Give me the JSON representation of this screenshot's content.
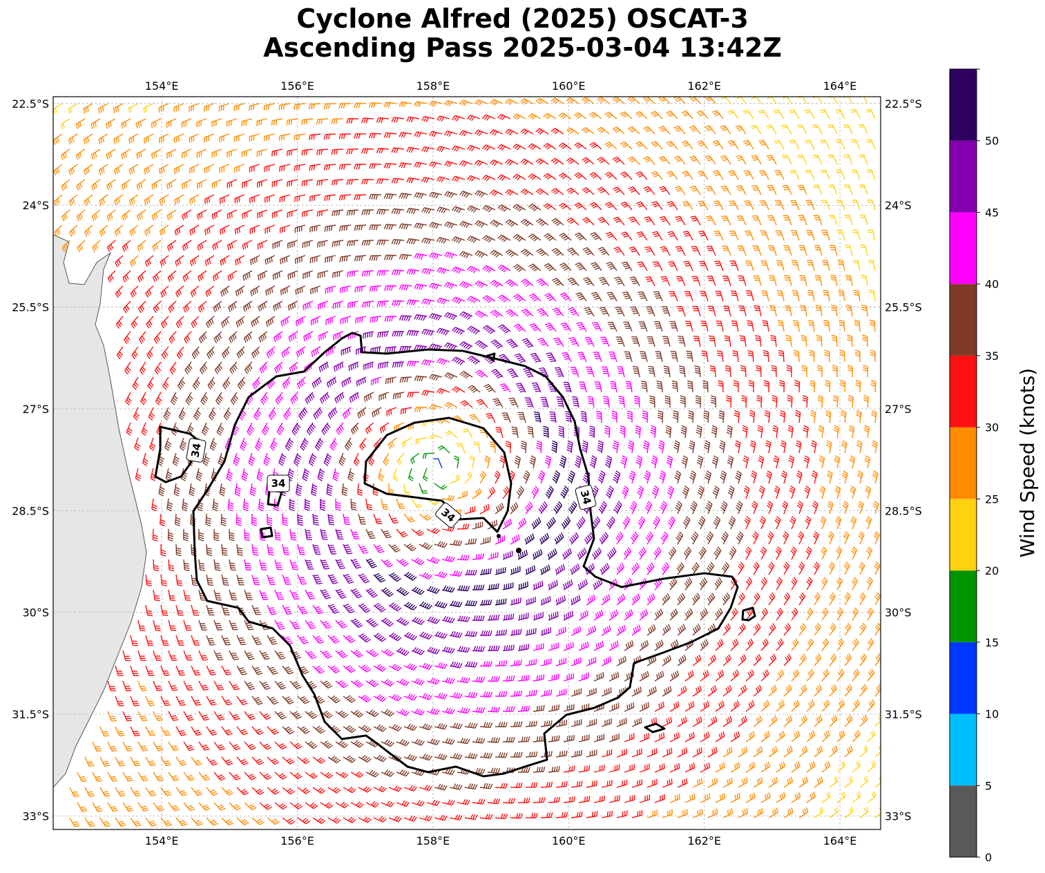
{
  "title": {
    "line1": "Cyclone Alfred (2025) OSCAT-3",
    "line2": "Ascending Pass 2025-03-04 13:42Z"
  },
  "map": {
    "lon_range": [
      152.4,
      164.6
    ],
    "lat_range": [
      -33.2,
      -22.4
    ],
    "lon_ticks": [
      {
        "value": 154,
        "label": "154°E"
      },
      {
        "value": 156,
        "label": "156°E"
      },
      {
        "value": 158,
        "label": "158°E"
      },
      {
        "value": 160,
        "label": "160°E"
      },
      {
        "value": 162,
        "label": "162°E"
      },
      {
        "value": 164,
        "label": "164°E"
      }
    ],
    "lat_ticks": [
      {
        "value": -22.5,
        "label": "22.5°S"
      },
      {
        "value": -24,
        "label": "24°S"
      },
      {
        "value": -25.5,
        "label": "25.5°S"
      },
      {
        "value": -27,
        "label": "27°S"
      },
      {
        "value": -28.5,
        "label": "28.5°S"
      },
      {
        "value": -30,
        "label": "30°S"
      },
      {
        "value": -31.5,
        "label": "31.5°S"
      },
      {
        "value": -33,
        "label": "33°S"
      }
    ],
    "gridlines": true,
    "coastline_color": "#555555",
    "land_shading": "#e6e6e6",
    "storm_center": {
      "lon": 158.1,
      "lat": -27.9
    }
  },
  "contour": {
    "level_label": "34",
    "color": "#000000"
  },
  "colorbar": {
    "label": "Wind Speed (knots)",
    "bins": [
      {
        "min": 0,
        "max": 5,
        "color": "#595959"
      },
      {
        "min": 5,
        "max": 10,
        "color": "#00bfff"
      },
      {
        "min": 10,
        "max": 15,
        "color": "#0037ff"
      },
      {
        "min": 15,
        "max": 20,
        "color": "#009400"
      },
      {
        "min": 20,
        "max": 25,
        "color": "#ffd20f"
      },
      {
        "min": 25,
        "max": 30,
        "color": "#ff8c00"
      },
      {
        "min": 30,
        "max": 35,
        "color": "#ff1010"
      },
      {
        "min": 35,
        "max": 40,
        "color": "#7f3b28"
      },
      {
        "min": 40,
        "max": 45,
        "color": "#ff00ff"
      },
      {
        "min": 45,
        "max": 50,
        "color": "#8400b0"
      },
      {
        "min": 50,
        "max": 55,
        "color": "#2e0060"
      }
    ],
    "ticks": [
      {
        "value": 0,
        "label": "0"
      },
      {
        "value": 5,
        "label": "5"
      },
      {
        "value": 10,
        "label": "10"
      },
      {
        "value": 15,
        "label": "15"
      },
      {
        "value": 20,
        "label": "20"
      },
      {
        "value": 25,
        "label": "25"
      },
      {
        "value": 30,
        "label": "30"
      },
      {
        "value": 35,
        "label": "35"
      },
      {
        "value": 40,
        "label": "40"
      },
      {
        "value": 45,
        "label": "45"
      },
      {
        "value": 50,
        "label": "50"
      }
    ]
  }
}
